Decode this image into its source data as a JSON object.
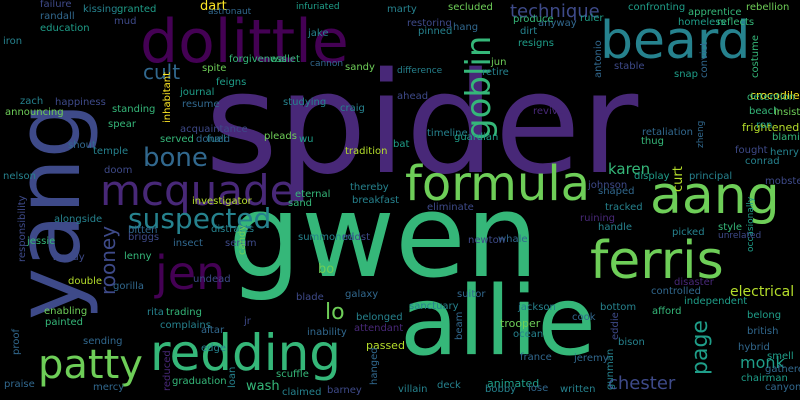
{
  "colors": {
    "background": "#000000",
    "palette": [
      "#440154",
      "#482878",
      "#3e4a89",
      "#31688e",
      "#26828e",
      "#1f9e89",
      "#35b779",
      "#6ece58",
      "#b5de2b",
      "#fde725"
    ]
  },
  "words": [
    {
      "text": "spider"
    },
    {
      "text": "gwen"
    },
    {
      "text": "allie"
    },
    {
      "text": "yang"
    },
    {
      "text": "dolittle"
    },
    {
      "text": "beard"
    },
    {
      "text": "aang"
    },
    {
      "text": "ferris"
    },
    {
      "text": "formula"
    },
    {
      "text": "redding"
    },
    {
      "text": "jen"
    },
    {
      "text": "mcquade"
    },
    {
      "text": "patty"
    },
    {
      "text": "goblin"
    },
    {
      "text": "suspected"
    },
    {
      "text": "bone"
    },
    {
      "text": "cult"
    },
    {
      "text": "technique"
    },
    {
      "text": "rooney"
    },
    {
      "text": "lo"
    },
    {
      "text": "page"
    },
    {
      "text": "chester"
    },
    {
      "text": "electrical"
    },
    {
      "text": "karen"
    },
    {
      "text": "monk"
    },
    {
      "text": "dart"
    },
    {
      "text": "bo"
    },
    {
      "text": "curt"
    },
    {
      "text": "wash"
    },
    {
      "text": "trooper"
    },
    {
      "text": "animated"
    },
    {
      "text": "passed"
    },
    {
      "text": "crocodile"
    },
    {
      "text": "frightened"
    },
    {
      "text": "spite"
    },
    {
      "text": "failure"
    },
    {
      "text": "kissing"
    },
    {
      "text": "granted"
    },
    {
      "text": "astronaut"
    },
    {
      "text": "infuriated"
    },
    {
      "text": "marty"
    },
    {
      "text": "secluded"
    },
    {
      "text": "confronting"
    },
    {
      "text": "apprentice"
    },
    {
      "text": "rebellion"
    },
    {
      "text": "randall"
    },
    {
      "text": "mud"
    },
    {
      "text": "dirt"
    },
    {
      "text": "anyway"
    },
    {
      "text": "ruler"
    },
    {
      "text": "homeless"
    },
    {
      "text": "reflects"
    },
    {
      "text": "education"
    },
    {
      "text": "jake"
    },
    {
      "text": "restoring"
    },
    {
      "text": "hang"
    },
    {
      "text": "produce"
    },
    {
      "text": "resigns"
    },
    {
      "text": "iron"
    },
    {
      "text": "forgiveness"
    },
    {
      "text": "wallet"
    },
    {
      "text": "cannon"
    },
    {
      "text": "sandy"
    },
    {
      "text": "difference"
    },
    {
      "text": "jun"
    },
    {
      "text": "retire"
    },
    {
      "text": "antonio"
    },
    {
      "text": "stable"
    },
    {
      "text": "snap"
    },
    {
      "text": "convict"
    },
    {
      "text": "costume"
    },
    {
      "text": "detention"
    },
    {
      "text": "zach"
    },
    {
      "text": "happiness"
    },
    {
      "text": "feigns"
    },
    {
      "text": "journal"
    },
    {
      "text": "inhabitant"
    },
    {
      "text": "announcing"
    },
    {
      "text": "standing"
    },
    {
      "text": "resume"
    },
    {
      "text": "studying"
    },
    {
      "text": "ahead"
    },
    {
      "text": "revive"
    },
    {
      "text": "beach"
    },
    {
      "text": "insist"
    },
    {
      "text": "spear"
    },
    {
      "text": "craig"
    },
    {
      "text": "ron"
    },
    {
      "text": "blaming"
    },
    {
      "text": "acquaintance"
    },
    {
      "text": "timeline"
    },
    {
      "text": "retaliation"
    },
    {
      "text": "shout"
    },
    {
      "text": "temple"
    },
    {
      "text": "served"
    },
    {
      "text": "fuel"
    },
    {
      "text": "donald"
    },
    {
      "text": "pleads"
    },
    {
      "text": "wu"
    },
    {
      "text": "bat"
    },
    {
      "text": "guardian"
    },
    {
      "text": "thug"
    },
    {
      "text": "zheng"
    },
    {
      "text": "henry"
    },
    {
      "text": "fought"
    },
    {
      "text": "conrad"
    },
    {
      "text": "doom"
    },
    {
      "text": "tradition"
    },
    {
      "text": "display"
    },
    {
      "text": "principal"
    },
    {
      "text": "nelson"
    },
    {
      "text": "eternal"
    },
    {
      "text": "thereby"
    },
    {
      "text": "johnson"
    },
    {
      "text": "mobster"
    },
    {
      "text": "investigator"
    },
    {
      "text": "sand"
    },
    {
      "text": "breakfast"
    },
    {
      "text": "shaped"
    },
    {
      "text": "alongside"
    },
    {
      "text": "bitten"
    },
    {
      "text": "eliminate"
    },
    {
      "text": "tracked"
    },
    {
      "text": "responsibility"
    },
    {
      "text": "briggs"
    },
    {
      "text": "distracts"
    },
    {
      "text": "summoned"
    },
    {
      "text": "midst"
    },
    {
      "text": "whale"
    },
    {
      "text": "style"
    },
    {
      "text": "ruining"
    },
    {
      "text": "jessie"
    },
    {
      "text": "insect"
    },
    {
      "text": "serum"
    },
    {
      "text": "candy"
    },
    {
      "text": "handle"
    },
    {
      "text": "picked"
    },
    {
      "text": "woody"
    },
    {
      "text": "occasionally"
    },
    {
      "text": "newton"
    },
    {
      "text": "undead"
    },
    {
      "text": "double"
    },
    {
      "text": "gorilla"
    },
    {
      "text": "blade"
    },
    {
      "text": "galaxy"
    },
    {
      "text": "suitor"
    },
    {
      "text": "disaster"
    },
    {
      "text": "controlled"
    },
    {
      "text": "independent"
    },
    {
      "text": "trading"
    },
    {
      "text": "rita"
    },
    {
      "text": "enabling"
    },
    {
      "text": "jr"
    },
    {
      "text": "sanctuary"
    },
    {
      "text": "jackson"
    },
    {
      "text": "bottom"
    },
    {
      "text": "afford"
    },
    {
      "text": "belong"
    },
    {
      "text": "painted"
    },
    {
      "text": "complains"
    },
    {
      "text": "altar"
    },
    {
      "text": "inability"
    },
    {
      "text": "attendant"
    },
    {
      "text": "belonged"
    },
    {
      "text": "beam"
    },
    {
      "text": "cook"
    },
    {
      "text": "eddie"
    },
    {
      "text": "british"
    },
    {
      "text": "proof"
    },
    {
      "text": "sending"
    },
    {
      "text": "edge"
    },
    {
      "text": "ocean"
    },
    {
      "text": "hybrid"
    },
    {
      "text": "smell"
    },
    {
      "text": "gathered"
    },
    {
      "text": "praise"
    },
    {
      "text": "mercy"
    },
    {
      "text": "reduced"
    },
    {
      "text": "graduation"
    },
    {
      "text": "loan"
    },
    {
      "text": "scuffle"
    },
    {
      "text": "barney"
    },
    {
      "text": "hanged"
    },
    {
      "text": "villain"
    },
    {
      "text": "deck"
    },
    {
      "text": "bobby"
    },
    {
      "text": "lose"
    },
    {
      "text": "written"
    },
    {
      "text": "chairman"
    },
    {
      "text": "canyon"
    },
    {
      "text": "claimed"
    },
    {
      "text": "france"
    },
    {
      "text": "jeremy"
    },
    {
      "text": "bison"
    },
    {
      "text": "pinned"
    },
    {
      "text": "gunman"
    },
    {
      "text": "unrelated"
    },
    {
      "text": "lenny"
    }
  ]
}
